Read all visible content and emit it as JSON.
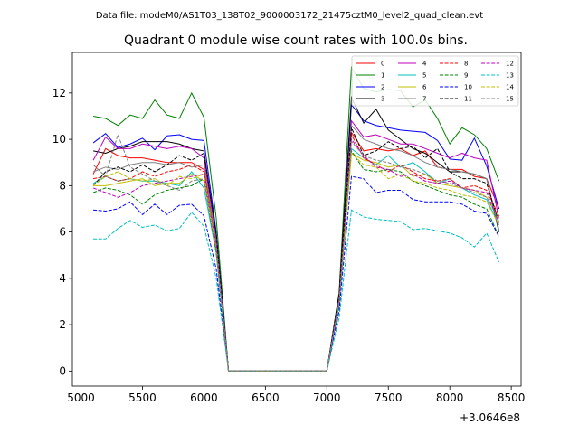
{
  "chart_data": {
    "type": "line",
    "suptitle": "Data file: modeM0/AS1T03_138T02_9000003172_21475cztM0_level2_quad_clean.evt",
    "title": "Quadrant 0 module wise count rates with 100.0s bins.",
    "xlabel": "",
    "ylabel": "",
    "x_offset_label": "+3.0646e8",
    "xlim": [
      4930,
      8580
    ],
    "ylim": [
      -0.65,
      13.75
    ],
    "x_ticks": [
      5000,
      5500,
      6000,
      6500,
      7000,
      7500,
      8000,
      8500
    ],
    "y_ticks": [
      0,
      2,
      4,
      6,
      8,
      10,
      12
    ],
    "grid": false,
    "legend": {
      "placement": "top-right",
      "ncol": 4
    },
    "x": [
      5100,
      5200,
      5300,
      5400,
      5500,
      5600,
      5700,
      5800,
      5900,
      6000,
      6100,
      6200,
      6300,
      6400,
      6500,
      6600,
      6700,
      6800,
      6900,
      7000,
      7100,
      7200,
      7300,
      7400,
      7500,
      7600,
      7700,
      7800,
      7900,
      8000,
      8100,
      8200,
      8300,
      8400
    ],
    "series": [
      {
        "name": "0",
        "color": "#ff0000",
        "dash": "solid",
        "values": [
          8.5,
          9.6,
          9.3,
          9.2,
          9.2,
          9.1,
          9.0,
          9.0,
          9.0,
          8.7,
          5.5,
          0,
          0,
          0,
          0,
          0,
          0,
          0,
          0,
          0,
          3.1,
          10.3,
          9.5,
          9.6,
          9.5,
          9.6,
          9.3,
          9.5,
          8.8,
          8.7,
          8.7,
          8.4,
          8.3,
          7.0
        ]
      },
      {
        "name": "1",
        "color": "#008000",
        "dash": "solid",
        "values": [
          11.0,
          10.9,
          10.6,
          11.05,
          10.9,
          11.7,
          11.05,
          10.9,
          12.0,
          10.95,
          6.6,
          0,
          0,
          0,
          0,
          0,
          0,
          0,
          0,
          0,
          3.4,
          13.1,
          12.2,
          12.05,
          12.15,
          12.1,
          11.4,
          11.7,
          10.9,
          9.8,
          10.5,
          10.2,
          9.6,
          8.2
        ]
      },
      {
        "name": "2",
        "color": "#0000ff",
        "dash": "solid",
        "values": [
          9.85,
          10.25,
          9.65,
          9.8,
          10.05,
          9.55,
          10.15,
          10.2,
          10.0,
          9.95,
          6.0,
          0,
          0,
          0,
          0,
          0,
          0,
          0,
          0,
          0,
          3.2,
          11.5,
          10.8,
          10.6,
          10.5,
          10.4,
          10.35,
          10.3,
          9.95,
          9.15,
          9.1,
          10.05,
          8.85,
          7.0
        ]
      },
      {
        "name": "3",
        "color": "#000000",
        "dash": "solid",
        "values": [
          9.5,
          9.4,
          9.6,
          9.7,
          9.9,
          9.9,
          9.9,
          9.8,
          9.6,
          9.5,
          5.8,
          0,
          0,
          0,
          0,
          0,
          0,
          0,
          0,
          0,
          3.3,
          11.8,
          10.7,
          11.3,
          10.4,
          10.0,
          9.6,
          9.4,
          9.0,
          8.6,
          8.6,
          8.5,
          8.3,
          6.0
        ]
      },
      {
        "name": "4",
        "color": "#bf00bf",
        "dash": "solid",
        "values": [
          9.1,
          10.1,
          9.6,
          9.6,
          9.8,
          9.7,
          9.6,
          9.7,
          9.6,
          9.2,
          5.7,
          0,
          0,
          0,
          0,
          0,
          0,
          0,
          0,
          0,
          3.2,
          10.8,
          10.1,
          10.2,
          10.0,
          9.8,
          9.8,
          9.6,
          9.4,
          9.2,
          9.4,
          9.2,
          9.1,
          6.6
        ]
      },
      {
        "name": "5",
        "color": "#00bfbf",
        "dash": "solid",
        "values": [
          8.1,
          8.4,
          8.2,
          8.3,
          8.2,
          8.2,
          8.1,
          8.0,
          8.6,
          7.9,
          5.1,
          0,
          0,
          0,
          0,
          0,
          0,
          0,
          0,
          0,
          2.9,
          9.6,
          9.2,
          8.9,
          9.3,
          8.8,
          9.0,
          8.6,
          8.1,
          8.3,
          7.9,
          7.6,
          7.4,
          6.3
        ]
      },
      {
        "name": "6",
        "color": "#bfbf00",
        "dash": "solid",
        "values": [
          8.0,
          8.0,
          8.1,
          8.2,
          8.3,
          8.0,
          8.1,
          8.1,
          8.5,
          8.2,
          5.3,
          0,
          0,
          0,
          0,
          0,
          0,
          0,
          0,
          0,
          3.0,
          9.4,
          9.1,
          9.0,
          8.8,
          8.9,
          8.4,
          8.5,
          8.1,
          8.0,
          7.9,
          7.8,
          7.5,
          6.6
        ]
      },
      {
        "name": "7",
        "color": "#808080",
        "dash": "solid",
        "values": [
          8.6,
          8.8,
          8.7,
          8.9,
          9.0,
          9.0,
          8.9,
          9.0,
          8.8,
          8.9,
          5.6,
          0,
          0,
          0,
          0,
          0,
          0,
          0,
          0,
          0,
          3.1,
          10.6,
          10.0,
          9.8,
          9.6,
          9.5,
          9.3,
          9.0,
          8.8,
          8.7,
          8.6,
          8.5,
          8.3,
          6.1
        ]
      },
      {
        "name": "8",
        "color": "#ff0000",
        "dash": "dash",
        "values": [
          8.3,
          8.4,
          8.2,
          8.3,
          8.6,
          8.4,
          8.6,
          8.7,
          8.9,
          8.6,
          5.3,
          0,
          0,
          0,
          0,
          0,
          0,
          0,
          0,
          0,
          3.0,
          10.2,
          9.2,
          8.9,
          8.6,
          8.9,
          8.6,
          8.3,
          8.2,
          8.3,
          7.9,
          8.0,
          7.8,
          6.7
        ]
      },
      {
        "name": "9",
        "color": "#008000",
        "dash": "dash",
        "values": [
          7.7,
          7.9,
          7.8,
          7.6,
          7.2,
          7.6,
          7.8,
          7.9,
          8.0,
          8.3,
          5.1,
          0,
          0,
          0,
          0,
          0,
          0,
          0,
          0,
          0,
          2.9,
          9.5,
          8.7,
          8.6,
          8.7,
          8.6,
          8.2,
          8.0,
          7.8,
          7.6,
          7.5,
          7.2,
          7.0,
          5.8
        ]
      },
      {
        "name": "10",
        "color": "#0000ff",
        "dash": "dash",
        "values": [
          6.95,
          6.9,
          7.0,
          7.3,
          6.75,
          7.2,
          6.75,
          7.15,
          7.2,
          6.7,
          4.4,
          0,
          0,
          0,
          0,
          0,
          0,
          0,
          0,
          0,
          2.6,
          8.4,
          8.3,
          7.7,
          7.8,
          7.8,
          7.4,
          7.3,
          7.3,
          7.3,
          7.2,
          6.9,
          6.8,
          5.8
        ]
      },
      {
        "name": "11",
        "color": "#000000",
        "dash": "dash",
        "values": [
          8.0,
          8.6,
          8.8,
          8.6,
          8.9,
          8.6,
          8.9,
          9.3,
          9.1,
          9.4,
          5.9,
          0,
          0,
          0,
          0,
          0,
          0,
          0,
          0,
          0,
          3.3,
          10.5,
          9.3,
          9.5,
          9.9,
          9.6,
          9.7,
          9.2,
          9.6,
          8.6,
          8.3,
          8.3,
          8.1,
          6.4
        ]
      },
      {
        "name": "12",
        "color": "#bf00bf",
        "dash": "dash",
        "values": [
          7.9,
          7.7,
          7.5,
          7.7,
          8.0,
          8.1,
          8.2,
          8.3,
          8.4,
          8.5,
          5.4,
          0,
          0,
          0,
          0,
          0,
          0,
          0,
          0,
          0,
          3.0,
          10.0,
          9.3,
          8.8,
          8.7,
          8.4,
          8.5,
          8.2,
          8.1,
          8.2,
          7.9,
          7.8,
          7.7,
          6.4
        ]
      },
      {
        "name": "13",
        "color": "#00bfbf",
        "dash": "dash",
        "values": [
          5.7,
          5.7,
          6.15,
          6.5,
          6.2,
          6.3,
          6.05,
          6.15,
          6.85,
          6.25,
          4.0,
          0,
          0,
          0,
          0,
          0,
          0,
          0,
          0,
          0,
          2.3,
          6.95,
          6.65,
          6.55,
          6.5,
          6.45,
          6.1,
          6.15,
          6.05,
          5.95,
          5.75,
          5.35,
          5.95,
          4.7
        ]
      },
      {
        "name": "14",
        "color": "#bfbf00",
        "dash": "dash",
        "values": [
          8.0,
          8.4,
          8.6,
          8.3,
          8.2,
          8.3,
          8.0,
          8.4,
          8.3,
          8.5,
          5.3,
          0,
          0,
          0,
          0,
          0,
          0,
          0,
          0,
          0,
          3.0,
          9.4,
          8.9,
          8.8,
          8.3,
          8.5,
          8.2,
          8.1,
          7.9,
          7.8,
          7.6,
          7.5,
          7.3,
          6.3
        ]
      },
      {
        "name": "15",
        "color": "#808080",
        "dash": "dash",
        "values": [
          8.9,
          8.4,
          10.2,
          8.8,
          8.5,
          8.2,
          8.0,
          7.8,
          8.2,
          8.3,
          5.2,
          0,
          0,
          0,
          0,
          0,
          0,
          0,
          0,
          0,
          3.0,
          9.9,
          9.3,
          9.1,
          9.0,
          8.8,
          8.7,
          8.5,
          8.2,
          8.1,
          7.9,
          7.7,
          7.5,
          6.5
        ]
      }
    ]
  }
}
